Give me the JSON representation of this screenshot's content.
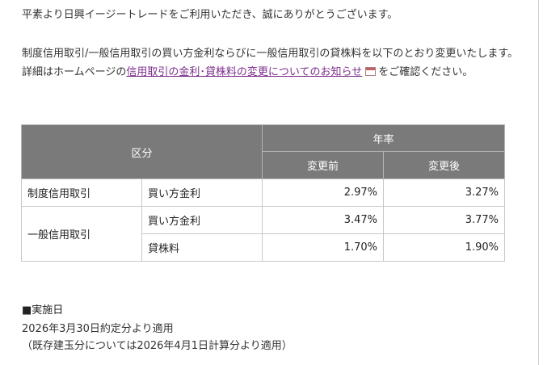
{
  "intro": {
    "greeting": "平素より日興イージートレードをご利用いただき、誠にありがとうございます。",
    "notice_before_link": "制度信用取引/一般信用取引の買い方金利ならびに一般信用取引の貸株料を以下のとおり変更いたします。詳細はホームページの",
    "notice_link": "信用取引の金利･貸株料の変更についてのお知らせ",
    "notice_after_link": "をご確認ください。",
    "link_icon": "external-window-icon"
  },
  "table": {
    "header_category": "区分",
    "header_rate": "年率",
    "header_before": "変更前",
    "header_after": "変更後",
    "rows": [
      {
        "category": "制度信用取引",
        "item": "買い方金利",
        "before": "2.97%",
        "after": "3.27%"
      },
      {
        "category": "一般信用取引",
        "item": "買い方金利",
        "before": "3.47%",
        "after": "3.77%"
      },
      {
        "category": "",
        "item": "貸株料",
        "before": "1.70%",
        "after": "1.90%"
      }
    ]
  },
  "effective": {
    "title": "■実施日",
    "line1": "2026年3月30日約定分より適用",
    "line2": "（既存建玉分については2026年4月1日計算分より適用）"
  },
  "colors": {
    "header_bg": "#7a7a7a",
    "link": "#7b2c8b",
    "border": "#c8c8c8"
  }
}
